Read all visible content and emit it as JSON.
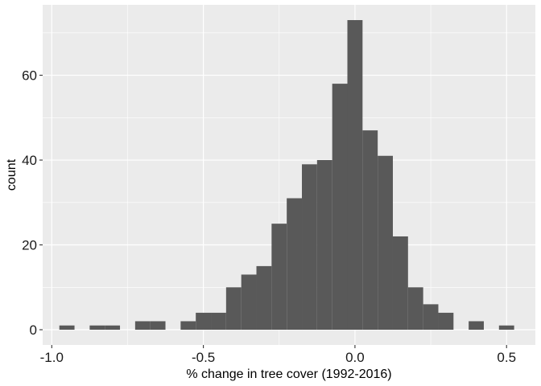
{
  "chart_data": {
    "type": "bar",
    "subtype": "histogram",
    "title": "",
    "xlabel": "% change in tree cover (1992-2016)",
    "ylabel": "count",
    "xlim": [
      -1.03,
      0.595
    ],
    "ylim": [
      -3.6,
      76.6
    ],
    "xticks": [
      -1.0,
      -0.5,
      0.0,
      0.5
    ],
    "xtick_labels": [
      "-1.0",
      "-0.5",
      "0.0",
      "0.5"
    ],
    "yticks": [
      0,
      20,
      40,
      60
    ],
    "ytick_labels": [
      "0",
      "20",
      "40",
      "60"
    ],
    "grid": true,
    "bin_width": 0.05,
    "bins": [
      {
        "x0": -0.975,
        "x1": -0.925,
        "count": 1
      },
      {
        "x0": -0.925,
        "x1": -0.875,
        "count": 0
      },
      {
        "x0": -0.875,
        "x1": -0.825,
        "count": 1
      },
      {
        "x0": -0.825,
        "x1": -0.775,
        "count": 1
      },
      {
        "x0": -0.775,
        "x1": -0.725,
        "count": 0
      },
      {
        "x0": -0.725,
        "x1": -0.675,
        "count": 2
      },
      {
        "x0": -0.675,
        "x1": -0.625,
        "count": 2
      },
      {
        "x0": -0.625,
        "x1": -0.575,
        "count": 0
      },
      {
        "x0": -0.575,
        "x1": -0.525,
        "count": 2
      },
      {
        "x0": -0.525,
        "x1": -0.475,
        "count": 4
      },
      {
        "x0": -0.475,
        "x1": -0.425,
        "count": 4
      },
      {
        "x0": -0.425,
        "x1": -0.375,
        "count": 10
      },
      {
        "x0": -0.375,
        "x1": -0.325,
        "count": 13
      },
      {
        "x0": -0.325,
        "x1": -0.275,
        "count": 15
      },
      {
        "x0": -0.275,
        "x1": -0.225,
        "count": 25
      },
      {
        "x0": -0.225,
        "x1": -0.175,
        "count": 31
      },
      {
        "x0": -0.175,
        "x1": -0.125,
        "count": 39
      },
      {
        "x0": -0.125,
        "x1": -0.075,
        "count": 40
      },
      {
        "x0": -0.075,
        "x1": -0.025,
        "count": 58
      },
      {
        "x0": -0.025,
        "x1": 0.025,
        "count": 73
      },
      {
        "x0": 0.025,
        "x1": 0.075,
        "count": 47
      },
      {
        "x0": 0.075,
        "x1": 0.125,
        "count": 41
      },
      {
        "x0": 0.125,
        "x1": 0.175,
        "count": 22
      },
      {
        "x0": 0.175,
        "x1": 0.225,
        "count": 10
      },
      {
        "x0": 0.225,
        "x1": 0.275,
        "count": 6
      },
      {
        "x0": 0.275,
        "x1": 0.325,
        "count": 4
      },
      {
        "x0": 0.325,
        "x1": 0.375,
        "count": 0
      },
      {
        "x0": 0.375,
        "x1": 0.425,
        "count": 2
      },
      {
        "x0": 0.425,
        "x1": 0.475,
        "count": 0
      },
      {
        "x0": 0.475,
        "x1": 0.525,
        "count": 1
      }
    ]
  },
  "colors": {
    "panel_background": "#EBEBEB",
    "grid_major": "#FFFFFF",
    "bar_fill": "#595959",
    "tick_mark": "#333333",
    "tick_label": "#1A1A1A"
  }
}
